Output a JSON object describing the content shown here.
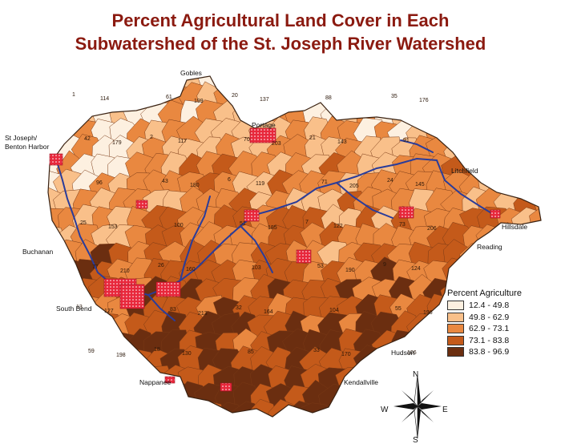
{
  "title_line1": "Percent Agricultural Land  Cover in Each",
  "title_line2": "Subwatershed of the St. Joseph River Watershed",
  "legend": {
    "title": "Percent Agriculture",
    "classes": [
      {
        "label": "12.4 - 49.8",
        "color": "#fdf0e0"
      },
      {
        "label": "49.8 - 62.9",
        "color": "#f9c08a"
      },
      {
        "label": "62.9 - 73.1",
        "color": "#e98840"
      },
      {
        "label": "73.1 - 83.8",
        "color": "#c45a1a"
      },
      {
        "label": "83.8 - 96.9",
        "color": "#6b2e10"
      }
    ]
  },
  "urban_color": "#e8283c",
  "river_color": "#2a3c9a",
  "cities": {
    "gobles": "Gobles",
    "portage": "Portage",
    "st_joseph_1": "St Joseph/",
    "st_joseph_2": "Benton Harbor",
    "litchfield": "Litchfield",
    "hillsdale": "Hillsdale",
    "reading": "Reading",
    "buchanan": "Buchanan",
    "south_bend": "South Bend",
    "hudson": "Hudson",
    "nappanee": "Nappanee",
    "kendallville": "Kendallville"
  },
  "compass": {
    "n": "N",
    "s": "S",
    "e": "E",
    "w": "W"
  },
  "subwatershed_labels": [
    "1",
    "2",
    "6",
    "7",
    "9",
    "13",
    "18",
    "20",
    "21",
    "24",
    "25",
    "26",
    "32",
    "33",
    "35",
    "42",
    "43",
    "51",
    "53",
    "55",
    "59",
    "61",
    "70",
    "71",
    "73",
    "77",
    "83",
    "85",
    "88",
    "91",
    "96",
    "100",
    "103",
    "104",
    "106",
    "114",
    "117",
    "119",
    "122",
    "124",
    "127",
    "130",
    "137",
    "143",
    "145",
    "153",
    "160",
    "164",
    "170",
    "176",
    "179",
    "180",
    "185",
    "190",
    "196",
    "198",
    "199",
    "203",
    "205",
    "206",
    "210",
    "213"
  ]
}
